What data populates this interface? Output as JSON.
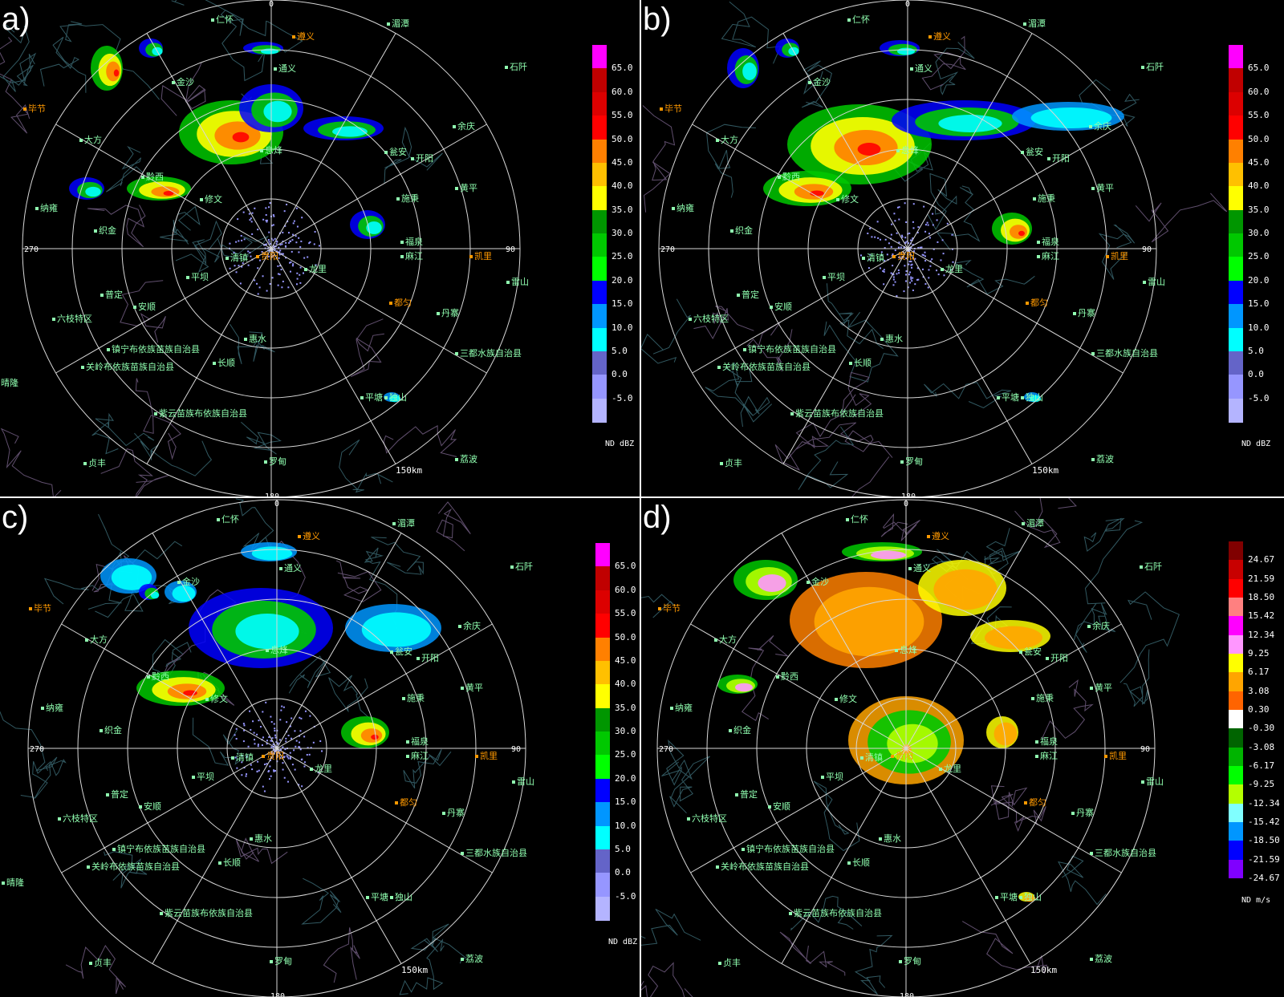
{
  "panels": [
    {
      "id": "a",
      "letter": "a)",
      "product": "reflectivity",
      "unit": "ND  dBZ"
    },
    {
      "id": "b",
      "letter": "b)",
      "product": "reflectivity",
      "unit": "ND  dBZ"
    },
    {
      "id": "c",
      "letter": "c)",
      "product": "reflectivity",
      "unit": "ND  dBZ"
    },
    {
      "id": "d",
      "letter": "d)",
      "product": "velocity",
      "unit": "ND  m/s"
    }
  ],
  "dbz_scale": {
    "labels": [
      "65.0",
      "60.0",
      "55.0",
      "50.0",
      "45.0",
      "40.0",
      "35.0",
      "30.0",
      "25.0",
      "20.0",
      "15.0",
      "10.0",
      "5.0",
      "0.0",
      "-5.0"
    ],
    "colors": [
      "#ff00ff",
      "#c00000",
      "#dc0000",
      "#ff0000",
      "#ff8000",
      "#ffc000",
      "#ffff00",
      "#009600",
      "#00c800",
      "#00ff00",
      "#0000ff",
      "#0096ff",
      "#00ffff",
      "#6464c8",
      "#9696ff",
      "#b4b4ff"
    ]
  },
  "velocity_scale": {
    "labels": [
      "24.67",
      "21.59",
      "18.50",
      "15.42",
      "12.34",
      "9.25",
      "6.17",
      "3.08",
      "0.30",
      "-0.30",
      "-3.08",
      "-6.17",
      "-9.25",
      "-12.34",
      "-15.42",
      "-18.50",
      "-21.59",
      "-24.67"
    ],
    "colors": [
      "#800000",
      "#c80000",
      "#ff0000",
      "#ff8080",
      "#ff00ff",
      "#ff96ff",
      "#ffff00",
      "#ffa500",
      "#ff6400",
      "#ffffff",
      "#006400",
      "#00b400",
      "#00ff00",
      "#b4ff00",
      "#80ffff",
      "#0096ff",
      "#0000ff",
      "#8000ff"
    ]
  },
  "range_rings": {
    "range_label": "150km"
  },
  "azimuth_labels": {
    "north": "0",
    "east": "90",
    "south": "180",
    "west": "270"
  },
  "cities": [
    {
      "name": "仁怀",
      "color": "#90ffb0"
    },
    {
      "name": "遵义",
      "color": "#ff9900"
    },
    {
      "name": "湄潭",
      "color": "#90ffb0"
    },
    {
      "name": "石阡",
      "color": "#90ffb0"
    },
    {
      "name": "通义",
      "color": "#90ffb0"
    },
    {
      "name": "金沙",
      "color": "#90ffb0"
    },
    {
      "name": "毕节",
      "color": "#ff9900"
    },
    {
      "name": "余庆",
      "color": "#90ffb0"
    },
    {
      "name": "大方",
      "color": "#90ffb0"
    },
    {
      "name": "息烽",
      "color": "#90ffb0"
    },
    {
      "name": "开阳",
      "color": "#90ffb0"
    },
    {
      "name": "瓮安",
      "color": "#90ffb0"
    },
    {
      "name": "施秉",
      "color": "#90ffb0"
    },
    {
      "name": "黔西",
      "color": "#90ffb0"
    },
    {
      "name": "黄平",
      "color": "#90ffb0"
    },
    {
      "name": "修文",
      "color": "#90ffb0"
    },
    {
      "name": "纳雍",
      "color": "#90ffb0"
    },
    {
      "name": "福泉",
      "color": "#90ffb0"
    },
    {
      "name": "织金",
      "color": "#90ffb0"
    },
    {
      "name": "凯里",
      "color": "#ff9900"
    },
    {
      "name": "贵阳",
      "color": "#ff9900"
    },
    {
      "name": "清镇",
      "color": "#90ffb0"
    },
    {
      "name": "麻江",
      "color": "#90ffb0"
    },
    {
      "name": "龙里",
      "color": "#90ffb0"
    },
    {
      "name": "平坝",
      "color": "#90ffb0"
    },
    {
      "name": "雷山",
      "color": "#90ffb0"
    },
    {
      "name": "普定",
      "color": "#90ffb0"
    },
    {
      "name": "都匀",
      "color": "#ff9900"
    },
    {
      "name": "安顺",
      "color": "#90ffb0"
    },
    {
      "name": "丹寨",
      "color": "#90ffb0"
    },
    {
      "name": "六枝特区",
      "color": "#90ffb0"
    },
    {
      "name": "惠水",
      "color": "#90ffb0"
    },
    {
      "name": "镇宁布依族苗族自治县",
      "color": "#90ffb0"
    },
    {
      "name": "长顺",
      "color": "#90ffb0"
    },
    {
      "name": "三都水族自治县",
      "color": "#90ffb0"
    },
    {
      "name": "关岭布依族苗族自治县",
      "color": "#90ffb0"
    },
    {
      "name": "平塘",
      "color": "#90ffb0"
    },
    {
      "name": "独山",
      "color": "#90ffb0"
    },
    {
      "name": "紫云苗族布依族自治县",
      "color": "#90ffb0"
    },
    {
      "name": "罗甸",
      "color": "#90ffb0"
    },
    {
      "name": "荔波",
      "color": "#90ffb0"
    },
    {
      "name": "贞丰",
      "color": "#90ffb0"
    },
    {
      "name": "晴隆",
      "color": "#90ffb0"
    }
  ]
}
